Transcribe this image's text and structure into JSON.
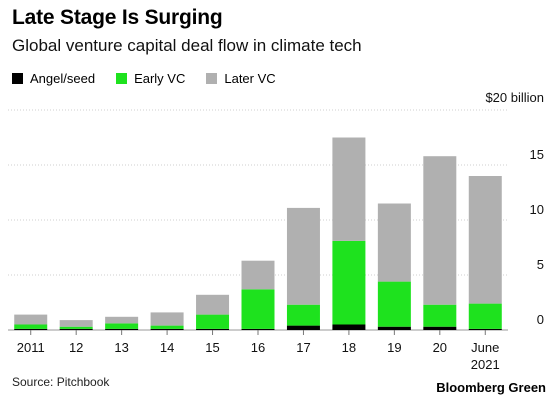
{
  "title": "Late Stage Is Surging",
  "subtitle": "Global venture capital deal flow in climate tech",
  "source": "Source: Pitchbook",
  "brand": "Bloomberg Green",
  "colors": {
    "angel": "#000000",
    "early": "#1ee21e",
    "later": "#b0b0b0"
  },
  "chart_data": {
    "type": "bar",
    "stacked": true,
    "categories": [
      "2011",
      "12",
      "13",
      "14",
      "15",
      "16",
      "17",
      "18",
      "19",
      "20",
      "June\n2021"
    ],
    "series": [
      {
        "name": "Angel/seed",
        "values": [
          0.1,
          0.1,
          0.1,
          0.1,
          0.1,
          0.1,
          0.4,
          0.5,
          0.3,
          0.3,
          0.1
        ]
      },
      {
        "name": "Early VC",
        "values": [
          0.4,
          0.2,
          0.5,
          0.3,
          1.3,
          3.6,
          1.9,
          7.6,
          4.1,
          2.0,
          2.3
        ]
      },
      {
        "name": "Later VC",
        "values": [
          0.9,
          0.6,
          0.6,
          1.2,
          1.8,
          2.6,
          8.8,
          9.4,
          7.1,
          13.5,
          11.6
        ]
      }
    ],
    "yticks": [
      0,
      5,
      10,
      15,
      20
    ],
    "ytick_labels": [
      "0",
      "5",
      "10",
      "15",
      "$20 billion"
    ],
    "ylim": [
      0,
      20
    ],
    "grid": true,
    "legend_position": "top-left"
  }
}
